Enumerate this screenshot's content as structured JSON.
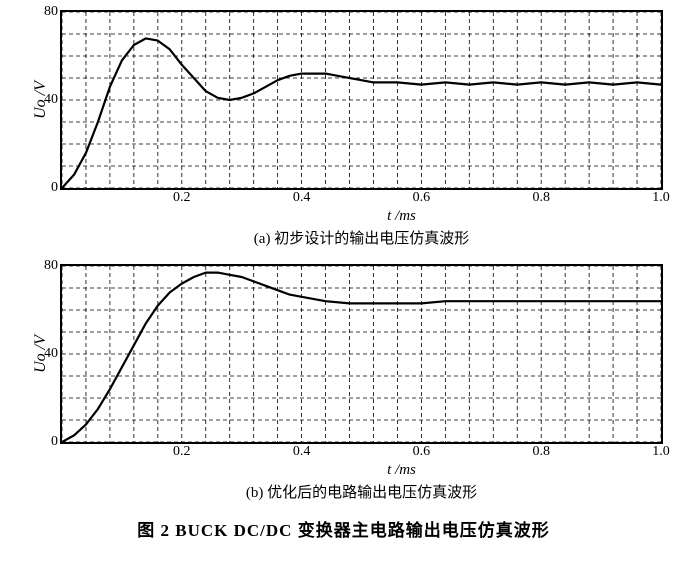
{
  "figure_caption": "图 2  BUCK DC/DC 变换器主电路输出电压仿真波形",
  "x_axis_label": "t /ms",
  "y_axis_label": "Uo /V",
  "style": {
    "background_color": "#ffffff",
    "axis_color": "#000000",
    "grid_color": "#000000",
    "grid_dash": "4 3",
    "grid_linewidth": 0.8,
    "curve_color": "#000000",
    "curve_linewidth": 2.2,
    "font_family": "SimSun",
    "tick_fontsize": 14,
    "label_fontsize": 15,
    "caption_fontsize": 17
  },
  "chart_a": {
    "subcaption": "(a) 初步设计的输出电压仿真波形",
    "type": "line",
    "xlim": [
      0,
      1.0
    ],
    "ylim": [
      0,
      80
    ],
    "xticks": [
      0.2,
      0.4,
      0.6,
      0.8,
      1.0
    ],
    "yticks": [
      0,
      40,
      80
    ],
    "x_minor_count": 5,
    "y_minor_step": 10,
    "series": {
      "x": [
        0.0,
        0.02,
        0.04,
        0.06,
        0.08,
        0.1,
        0.12,
        0.14,
        0.16,
        0.18,
        0.2,
        0.22,
        0.24,
        0.26,
        0.28,
        0.3,
        0.32,
        0.34,
        0.36,
        0.38,
        0.4,
        0.42,
        0.44,
        0.46,
        0.48,
        0.5,
        0.52,
        0.56,
        0.6,
        0.64,
        0.68,
        0.72,
        0.76,
        0.8,
        0.84,
        0.88,
        0.92,
        0.96,
        1.0
      ],
      "y": [
        0,
        6,
        16,
        30,
        46,
        58,
        65,
        68,
        67,
        63,
        56,
        50,
        44,
        41,
        40,
        41,
        43,
        46,
        49,
        51,
        52,
        52,
        52,
        51,
        50,
        49,
        48,
        48,
        47,
        48,
        47,
        48,
        47,
        48,
        47,
        48,
        47,
        48,
        47
      ]
    }
  },
  "chart_b": {
    "subcaption": "(b) 优化后的电路输出电压仿真波形",
    "type": "line",
    "xlim": [
      0,
      1.0
    ],
    "ylim": [
      0,
      80
    ],
    "xticks": [
      0.2,
      0.4,
      0.6,
      0.8,
      1.0
    ],
    "yticks": [
      0,
      40,
      80
    ],
    "x_minor_count": 5,
    "y_minor_step": 10,
    "series": {
      "x": [
        0.0,
        0.02,
        0.04,
        0.06,
        0.08,
        0.1,
        0.12,
        0.14,
        0.16,
        0.18,
        0.2,
        0.22,
        0.24,
        0.26,
        0.28,
        0.3,
        0.32,
        0.34,
        0.36,
        0.38,
        0.4,
        0.44,
        0.48,
        0.52,
        0.56,
        0.6,
        0.64,
        0.68,
        0.72,
        0.76,
        0.8,
        0.84,
        0.88,
        0.92,
        0.96,
        1.0
      ],
      "y": [
        0,
        3,
        8,
        15,
        24,
        34,
        44,
        54,
        62,
        68,
        72,
        75,
        77,
        77,
        76,
        75,
        73,
        71,
        69,
        67,
        66,
        64,
        63,
        63,
        63,
        63,
        64,
        64,
        64,
        64,
        64,
        64,
        64,
        64,
        64,
        64
      ]
    }
  }
}
